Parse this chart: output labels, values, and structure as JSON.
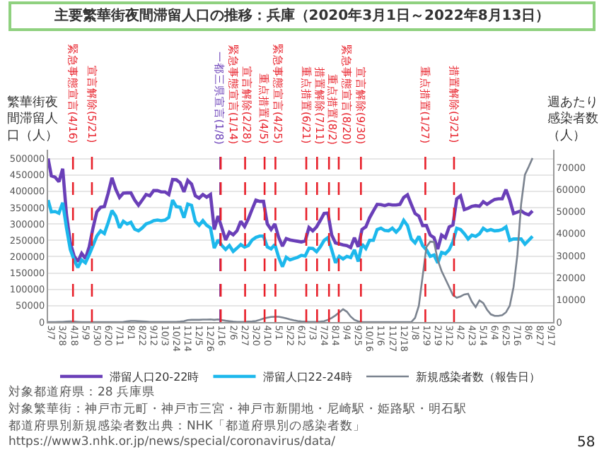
{
  "chart_data": {
    "type": "line",
    "title": "主要繁華街夜間滞留人口の推移：兵庫（2020年3月1日～2022年8月13日）",
    "ylabel": "繁華街夜間滞留人口（人）",
    "y2label": "週あたり感染者数（人）",
    "x": [
      "2020-03-01",
      "2020-03-07",
      "2020-03-14",
      "2020-03-21",
      "2020-03-28",
      "2020-04-04",
      "2020-04-11",
      "2020-04-18",
      "2020-04-25",
      "2020-05-02",
      "2020-05-09",
      "2020-05-16",
      "2020-05-23",
      "2020-05-30",
      "2020-06-06",
      "2020-06-13",
      "2020-06-20",
      "2020-06-27",
      "2020-07-04",
      "2020-07-11",
      "2020-07-18",
      "2020-07-25",
      "2020-08-01",
      "2020-08-08",
      "2020-08-15",
      "2020-08-22",
      "2020-08-29",
      "2020-09-05",
      "2020-09-12",
      "2020-09-19",
      "2020-09-26",
      "2020-10-03",
      "2020-10-10",
      "2020-10-17",
      "2020-10-24",
      "2020-10-31",
      "2020-11-07",
      "2020-11-14",
      "2020-11-21",
      "2020-11-28",
      "2020-12-05",
      "2020-12-12",
      "2020-12-19",
      "2020-12-26",
      "2021-01-02",
      "2021-01-09",
      "2021-01-16",
      "2021-01-23",
      "2021-01-30",
      "2021-02-06",
      "2021-02-13",
      "2021-02-20",
      "2021-02-27",
      "2021-03-06",
      "2021-03-13",
      "2021-03-20",
      "2021-03-27",
      "2021-04-03",
      "2021-04-10",
      "2021-04-17",
      "2021-04-24",
      "2021-05-01",
      "2021-05-08",
      "2021-05-15",
      "2021-05-22",
      "2021-05-29",
      "2021-06-05",
      "2021-06-12",
      "2021-06-19",
      "2021-06-26",
      "2021-07-03",
      "2021-07-10",
      "2021-07-17",
      "2021-07-24",
      "2021-07-31",
      "2021-08-07",
      "2021-08-14",
      "2021-08-21",
      "2021-08-28",
      "2021-09-04",
      "2021-09-11",
      "2021-09-18",
      "2021-09-25",
      "2021-10-02",
      "2021-10-09",
      "2021-10-16",
      "2021-10-23",
      "2021-10-30",
      "2021-11-06",
      "2021-11-13",
      "2021-11-20",
      "2021-11-27",
      "2021-12-04",
      "2021-12-11",
      "2021-12-18",
      "2021-12-25",
      "2022-01-01",
      "2022-01-08",
      "2022-01-15",
      "2022-01-22",
      "2022-01-29",
      "2022-02-05",
      "2022-02-12",
      "2022-02-19",
      "2022-02-26",
      "2022-03-05",
      "2022-03-12",
      "2022-03-19",
      "2022-03-26",
      "2022-04-02",
      "2022-04-09",
      "2022-04-16",
      "2022-04-23",
      "2022-04-30",
      "2022-05-07",
      "2022-05-14",
      "2022-05-21",
      "2022-05-28",
      "2022-06-04",
      "2022-06-11",
      "2022-06-18",
      "2022-06-25",
      "2022-07-02",
      "2022-07-09",
      "2022-07-16",
      "2022-07-23",
      "2022-07-30",
      "2022-08-06",
      "2022-08-13"
    ],
    "series": [
      {
        "name": "滞留人口20-22時",
        "color": "#6a3fb8",
        "values": [
          500000,
          447000,
          443000,
          429000,
          469000,
          328000,
          243000,
          202000,
          185000,
          210000,
          194000,
          230000,
          288000,
          337000,
          351000,
          353000,
          394000,
          441000,
          406000,
          381000,
          394000,
          395000,
          395000,
          373000,
          357000,
          373000,
          390000,
          386000,
          402000,
          402000,
          398000,
          398000,
          390000,
          436000,
          435000,
          426000,
          398000,
          433000,
          422000,
          386000,
          379000,
          390000,
          382000,
          390000,
          283000,
          324000,
          288000,
          251000,
          275000,
          267000,
          279000,
          308000,
          292000,
          316000,
          345000,
          373000,
          369000,
          369000,
          300000,
          283000,
          300000,
          259000,
          232000,
          255000,
          251000,
          249000,
          247000,
          245000,
          248000,
          289000,
          279000,
          291000,
          311000,
          332000,
          333000,
          266000,
          242000,
          239000,
          236000,
          234000,
          228000,
          258000,
          230000,
          283000,
          291000,
          319000,
          340000,
          360000,
          359000,
          356000,
          360000,
          358000,
          358000,
          360000,
          381000,
          389000,
          360000,
          332000,
          324000,
          295000,
          295000,
          266000,
          258000,
          223000,
          266000,
          258000,
          291000,
          297000,
          377000,
          386000,
          344000,
          348000,
          354000,
          356000,
          354000,
          368000,
          360000,
          368000,
          375000,
          377000,
          377000,
          405000,
          373000,
          332000,
          336000,
          340000,
          332000,
          328000,
          340000
        ]
      },
      {
        "name": "滞留人口22-24時",
        "color": "#1db8ec",
        "values": [
          373000,
          337000,
          338000,
          333000,
          365000,
          288000,
          222000,
          190000,
          167000,
          190000,
          181000,
          206000,
          234000,
          263000,
          279000,
          271000,
          304000,
          341000,
          324000,
          288000,
          308000,
          300000,
          305000,
          284000,
          279000,
          288000,
          300000,
          304000,
          310000,
          312000,
          310000,
          312000,
          320000,
          373000,
          353000,
          351000,
          319000,
          361000,
          357000,
          308000,
          296000,
          310000,
          296000,
          288000,
          226000,
          251000,
          234000,
          222000,
          234000,
          216000,
          226000,
          237000,
          229000,
          234000,
          251000,
          259000,
          263000,
          263000,
          230000,
          224000,
          237000,
          198000,
          169000,
          198000,
          190000,
          194000,
          198000,
          204000,
          202000,
          226000,
          225000,
          215000,
          230000,
          250000,
          258000,
          221000,
          181000,
          201000,
          193000,
          201000,
          197000,
          221000,
          185000,
          238000,
          225000,
          250000,
          250000,
          283000,
          287000,
          280000,
          279000,
          287000,
          275000,
          287000,
          311000,
          295000,
          254000,
          242000,
          262000,
          234000,
          221000,
          201000,
          205000,
          181000,
          213000,
          209000,
          221000,
          246000,
          287000,
          283000,
          270000,
          254000,
          266000,
          262000,
          270000,
          287000,
          279000,
          283000,
          279000,
          280000,
          283000,
          291000,
          250000,
          254000,
          254000,
          254000,
          238000,
          250000,
          262000
        ]
      },
      {
        "name": "新規感染者数（報告日）",
        "color": "#7b838f",
        "axis": "y2",
        "values": [
          0,
          0,
          0,
          100,
          100,
          200,
          300,
          200,
          100,
          0,
          0,
          0,
          0,
          0,
          0,
          0,
          0,
          0,
          0,
          0,
          100,
          300,
          500,
          500,
          400,
          300,
          200,
          100,
          100,
          100,
          100,
          100,
          100,
          100,
          100,
          200,
          400,
          900,
          1000,
          1000,
          1000,
          1100,
          1100,
          1200,
          1000,
          1200,
          900,
          600,
          400,
          200,
          100,
          100,
          100,
          200,
          300,
          500,
          1000,
          1600,
          2000,
          2300,
          2400,
          2400,
          2100,
          1700,
          1200,
          800,
          500,
          300,
          200,
          100,
          100,
          100,
          200,
          400,
          1000,
          1900,
          3000,
          4400,
          5800,
          4700,
          2500,
          1000,
          300,
          100,
          0,
          0,
          0,
          0,
          0,
          0,
          0,
          0,
          0,
          0,
          0,
          0,
          0,
          1900,
          7400,
          20700,
          34000,
          36400,
          36200,
          28000,
          23100,
          19500,
          15900,
          12200,
          11000,
          11600,
          12500,
          12800,
          9200,
          6800,
          9800,
          8600,
          5600,
          3500,
          2800,
          2800,
          3100,
          4400,
          7400,
          15900,
          30400,
          53400,
          66700,
          70300,
          74200
        ]
      }
    ],
    "xlim": [
      "2020-03-01",
      "2022-09-20"
    ],
    "xticks": [
      {
        "value": "2020-03-07",
        "label": "3/7"
      },
      {
        "value": "2020-03-28",
        "label": "3/28"
      },
      {
        "value": "2020-04-18",
        "label": "4/18"
      },
      {
        "value": "2020-05-09",
        "label": "5/9"
      },
      {
        "value": "2020-05-30",
        "label": "5/30"
      },
      {
        "value": "2020-06-20",
        "label": "6/20"
      },
      {
        "value": "2020-07-11",
        "label": "7/11"
      },
      {
        "value": "2020-08-01",
        "label": "8/1"
      },
      {
        "value": "2020-08-22",
        "label": "8/22"
      },
      {
        "value": "2020-09-12",
        "label": "9/12"
      },
      {
        "value": "2020-10-03",
        "label": "10/3"
      },
      {
        "value": "2020-10-24",
        "label": "10/24"
      },
      {
        "value": "2020-11-14",
        "label": "11/14"
      },
      {
        "value": "2020-12-05",
        "label": "12/5"
      },
      {
        "value": "2020-12-26",
        "label": "12/26"
      },
      {
        "value": "2021-01-16",
        "label": "1/16"
      },
      {
        "value": "2021-02-06",
        "label": "2/6"
      },
      {
        "value": "2021-02-27",
        "label": "2/27"
      },
      {
        "value": "2021-03-20",
        "label": "3/20"
      },
      {
        "value": "2021-04-10",
        "label": "4/10"
      },
      {
        "value": "2021-05-01",
        "label": "5/1"
      },
      {
        "value": "2021-05-22",
        "label": "5/22"
      },
      {
        "value": "2021-06-12",
        "label": "6/12"
      },
      {
        "value": "2021-07-03",
        "label": "7/3"
      },
      {
        "value": "2021-07-24",
        "label": "7/24"
      },
      {
        "value": "2021-08-14",
        "label": "8/14"
      },
      {
        "value": "2021-09-04",
        "label": "9/4"
      },
      {
        "value": "2021-09-25",
        "label": "9/25"
      },
      {
        "value": "2021-10-16",
        "label": "10/16"
      },
      {
        "value": "2021-11-06",
        "label": "11/6"
      },
      {
        "value": "2021-11-27",
        "label": "11/27"
      },
      {
        "value": "2021-12-18",
        "label": "12/18"
      },
      {
        "value": "2022-01-08",
        "label": "1/8"
      },
      {
        "value": "2022-01-29",
        "label": "1/29"
      },
      {
        "value": "2022-02-19",
        "label": "2/19"
      },
      {
        "value": "2022-03-12",
        "label": "3/12"
      },
      {
        "value": "2022-04-02",
        "label": "4/2"
      },
      {
        "value": "2022-04-23",
        "label": "4/23"
      },
      {
        "value": "2022-05-14",
        "label": "5/14"
      },
      {
        "value": "2022-06-04",
        "label": "6/4"
      },
      {
        "value": "2022-06-25",
        "label": "6/25"
      },
      {
        "value": "2022-07-16",
        "label": "7/16"
      },
      {
        "value": "2022-08-06",
        "label": "8/6"
      },
      {
        "value": "2022-08-27",
        "label": "8/27"
      },
      {
        "value": "2022-09-17",
        "label": "9/17"
      }
    ],
    "ylim": [
      0,
      527000
    ],
    "yticks": [
      0,
      50000,
      100000,
      150000,
      200000,
      250000,
      300000,
      350000,
      400000,
      450000,
      500000
    ],
    "y2lim": [
      0,
      78000
    ],
    "y2ticks": [
      0,
      10000,
      20000,
      30000,
      40000,
      50000,
      60000,
      70000
    ],
    "grid": "y",
    "legend": "bottom",
    "ref_lines": [
      {
        "axis": "x",
        "value": "2020-04-16",
        "label": "緊急事態宣言(4/16)",
        "color": "#e8202a",
        "line_style": "dashed"
      },
      {
        "axis": "x",
        "value": "2020-05-21",
        "label": "宣言解除(5/21)",
        "color": "#e8202a",
        "line_style": "dashed"
      },
      {
        "axis": "x",
        "value": "2021-01-13",
        "label": "一都三県宣言(1/8)",
        "color": "#6a3fb8",
        "line_style": "dashed"
      },
      {
        "axis": "x",
        "value": "2021-01-14",
        "label": "緊急事態宣言(1/14)",
        "color": "#e8202a",
        "line_style": "dashed"
      },
      {
        "axis": "x",
        "value": "2021-02-28",
        "label": "宣言解除(2/28)",
        "color": "#e8202a",
        "line_style": "dashed"
      },
      {
        "axis": "x",
        "value": "2021-04-05",
        "label": "重点措置(4/5)",
        "color": "#e8202a",
        "line_style": "dashed"
      },
      {
        "axis": "x",
        "value": "2021-04-25",
        "label": "緊急事態宣言(4/25)",
        "color": "#e8202a",
        "line_style": "dashed"
      },
      {
        "axis": "x",
        "value": "2021-06-21",
        "label": "重点措置(6/21)",
        "color": "#e8202a",
        "line_style": "dashed"
      },
      {
        "axis": "x",
        "value": "2021-07-11",
        "label": "措置解除(7/11)",
        "color": "#e8202a",
        "line_style": "dashed"
      },
      {
        "axis": "x",
        "value": "2021-08-02",
        "label": "重点措置(8/2)",
        "color": "#e8202a",
        "line_style": "dashed"
      },
      {
        "axis": "x",
        "value": "2021-08-20",
        "label": "緊急事態宣言(8/20)",
        "color": "#e8202a",
        "line_style": "dashed"
      },
      {
        "axis": "x",
        "value": "2021-09-30",
        "label": "宣言解除(9/30)",
        "color": "#e8202a",
        "line_style": "dashed"
      },
      {
        "axis": "x",
        "value": "2022-01-27",
        "label": "重点措置(1/27)",
        "color": "#e8202a",
        "line_style": "dashed"
      },
      {
        "axis": "x",
        "value": "2022-03-21",
        "label": "措置解除(3/21)",
        "color": "#e8202a",
        "line_style": "dashed"
      }
    ],
    "annotations": [
      "対象都道府県：28 兵庫県",
      "対象繁華街：神戸市元町・神戸市三宮・神戸市新開地・尼崎駅・姫路駅・明石駅",
      "都道府県別新規感染者数出典：NHK「都道府県別の感染者数」",
      "https://www3.nhk.or.jp/news/special/coronavirus/data/",
      "58"
    ]
  }
}
